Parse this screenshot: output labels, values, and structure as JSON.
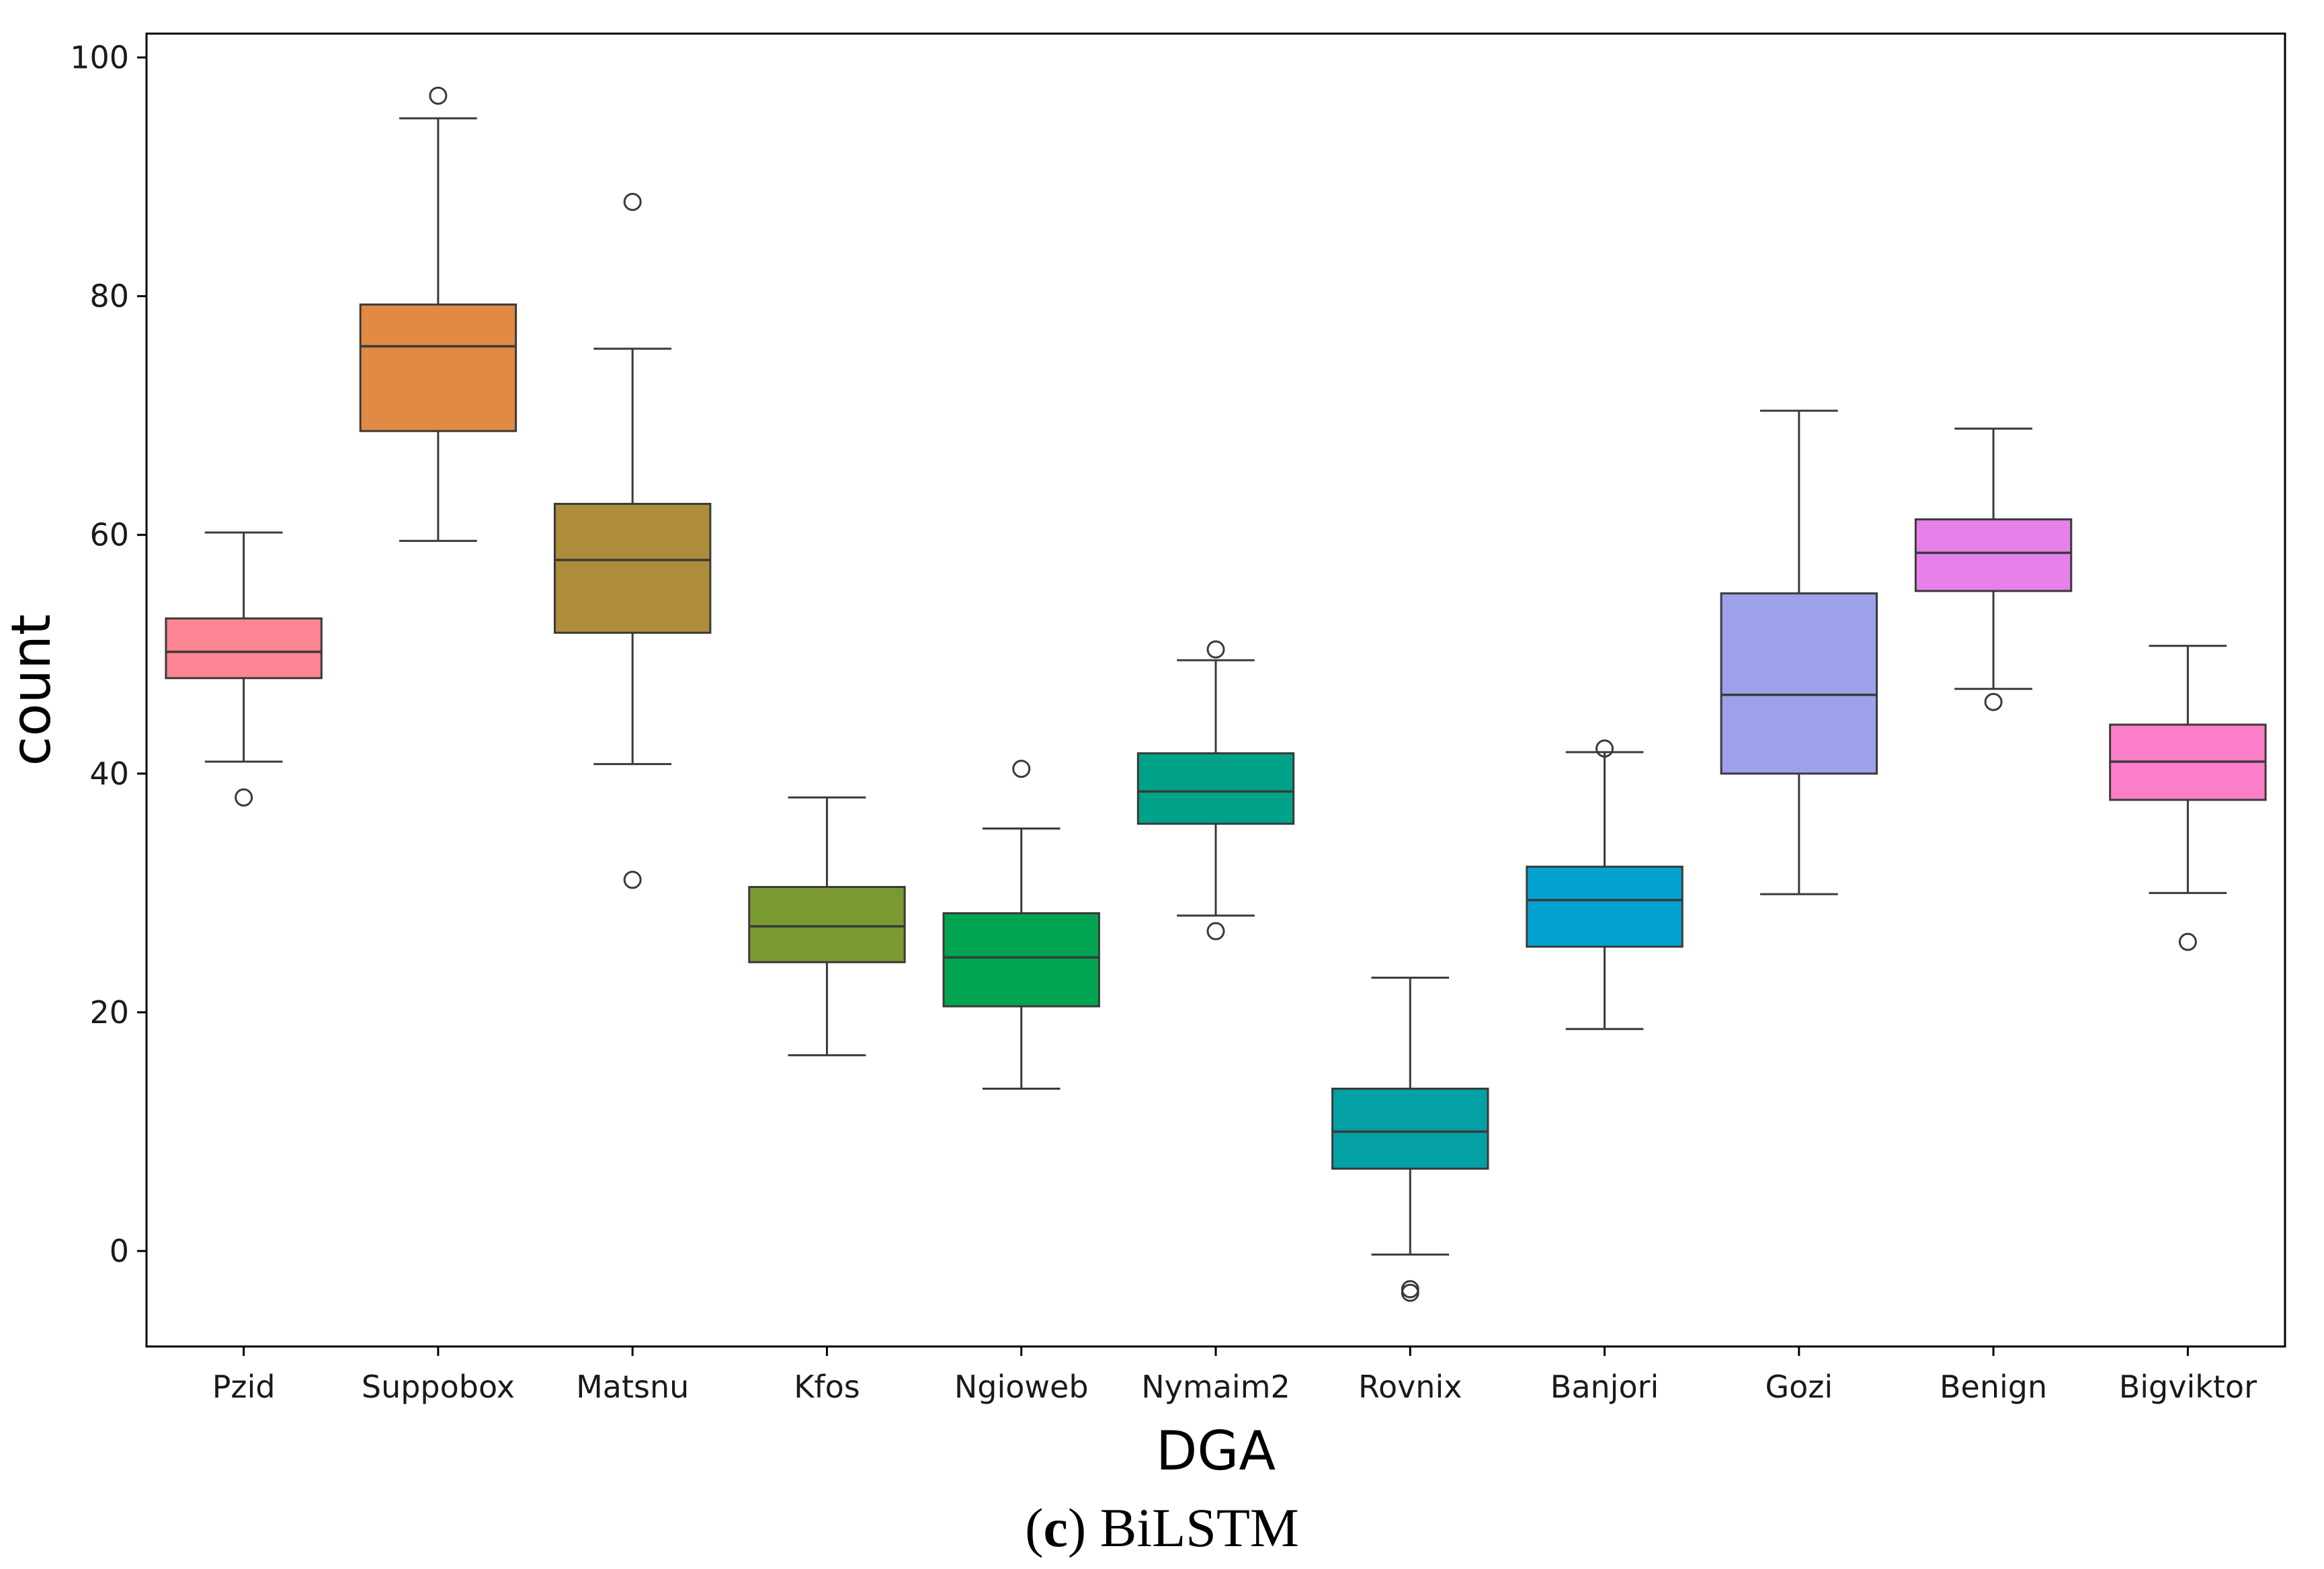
{
  "chart_data": {
    "type": "boxplot",
    "title": "",
    "xlabel": "DGA",
    "ylabel": "count",
    "ylim": [
      -8,
      102
    ],
    "yticks": [
      0,
      20,
      40,
      60,
      80,
      100
    ],
    "caption": {
      "open": "(",
      "letter": "c",
      "close": ")",
      "text": " BiLSTM"
    },
    "series": [
      {
        "name": "Pzid",
        "color": "#fc8493",
        "whisker_low": 41.0,
        "q1": 48.0,
        "median": 50.2,
        "q3": 53.0,
        "whisker_high": 60.2,
        "outliers": [
          38.0
        ]
      },
      {
        "name": "Suppobox",
        "color": "#e08a43",
        "whisker_low": 59.5,
        "q1": 68.7,
        "median": 75.8,
        "q3": 79.3,
        "whisker_high": 94.9,
        "outliers": [
          96.8
        ]
      },
      {
        "name": "Matsnu",
        "color": "#ae8c39",
        "whisker_low": 40.8,
        "q1": 51.8,
        "median": 57.9,
        "q3": 62.6,
        "whisker_high": 75.6,
        "outliers": [
          87.9,
          31.1
        ]
      },
      {
        "name": "Kfos",
        "color": "#7a9a31",
        "whisker_low": 16.4,
        "q1": 24.2,
        "median": 27.2,
        "q3": 30.5,
        "whisker_high": 38.0,
        "outliers": []
      },
      {
        "name": "Ngioweb",
        "color": "#01a550",
        "whisker_low": 13.6,
        "q1": 20.5,
        "median": 24.6,
        "q3": 28.3,
        "whisker_high": 35.4,
        "outliers": [
          40.4
        ]
      },
      {
        "name": "Nymaim2",
        "color": "#00a38a",
        "whisker_low": 28.1,
        "q1": 35.8,
        "median": 38.5,
        "q3": 41.7,
        "whisker_high": 49.5,
        "outliers": [
          50.4,
          26.8
        ]
      },
      {
        "name": "Rovnix",
        "color": "#03a0a5",
        "whisker_low": -0.3,
        "q1": 6.9,
        "median": 10.0,
        "q3": 13.6,
        "whisker_high": 22.9,
        "outliers": [
          -3.2,
          -3.5
        ]
      },
      {
        "name": "Banjori",
        "color": "#03a2d0",
        "whisker_low": 18.6,
        "q1": 25.5,
        "median": 29.4,
        "q3": 32.2,
        "whisker_high": 41.8,
        "outliers": [
          42.1
        ]
      },
      {
        "name": "Gozi",
        "color": "#9ca1ea",
        "whisker_low": 29.9,
        "q1": 40.0,
        "median": 46.6,
        "q3": 55.1,
        "whisker_high": 70.4,
        "outliers": []
      },
      {
        "name": "Benign",
        "color": "#e681e9",
        "whisker_low": 47.1,
        "q1": 55.3,
        "median": 58.5,
        "q3": 61.3,
        "whisker_high": 68.9,
        "outliers": [
          46.0
        ]
      },
      {
        "name": "Bigviktor",
        "color": "#fd7ec8",
        "whisker_low": 30.0,
        "q1": 37.8,
        "median": 41.0,
        "q3": 44.1,
        "whisker_high": 50.7,
        "outliers": [
          25.9
        ]
      }
    ]
  }
}
